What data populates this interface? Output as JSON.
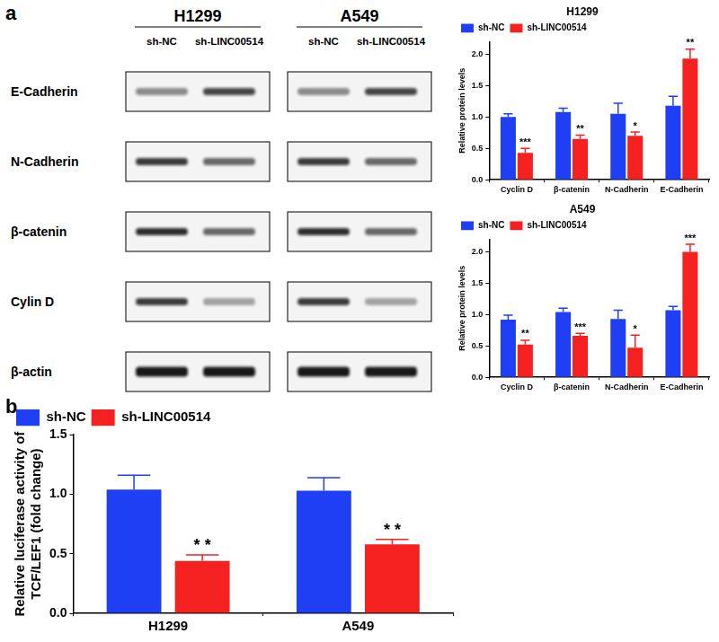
{
  "panel_labels": [
    "a",
    "b"
  ],
  "blot": {
    "cell_lines": [
      "H1299",
      "A549"
    ],
    "lanes": [
      "sh-NC",
      "sh-LINC00514"
    ],
    "proteins": [
      "E-Cadherin",
      "N-Cadherin",
      "β-catenin",
      "Cylin D",
      "β-actin"
    ]
  },
  "chart_data": [
    {
      "type": "bar",
      "title": "H1299",
      "y_label": "Relative protein levels",
      "categories": [
        "Cyclin D",
        "β-catenin",
        "N-Cadherin",
        "E-Cadherin"
      ],
      "series": [
        {
          "name": "sh-NC",
          "color": "#1f3ff5",
          "values": [
            1.0,
            1.08,
            1.05,
            1.18
          ],
          "errors": [
            0.05,
            0.06,
            0.17,
            0.15
          ]
        },
        {
          "name": "sh-LINC00514",
          "color": "#f52020",
          "values": [
            0.43,
            0.65,
            0.7,
            1.93
          ],
          "errors": [
            0.07,
            0.06,
            0.06,
            0.15
          ],
          "significance": [
            "***",
            "**",
            "*",
            "**"
          ]
        }
      ],
      "ylim": [
        0,
        2.2
      ],
      "yticks": [
        {
          "value": 0,
          "label": "0.0"
        },
        0.5,
        {
          "value": 1,
          "label": "1.0"
        },
        1.5,
        {
          "value": 2,
          "label": "2.0"
        }
      ],
      "grid": false,
      "legend": "top-left"
    },
    {
      "type": "bar",
      "title": "A549",
      "y_label": "Relative protein levels",
      "categories": [
        "Cyclin D",
        "β-catenin",
        "N-Cadherin",
        "E-Cadherin"
      ],
      "series": [
        {
          "name": "sh-NC",
          "color": "#1f3ff5",
          "values": [
            0.92,
            1.04,
            0.93,
            1.07
          ],
          "errors": [
            0.07,
            0.06,
            0.14,
            0.06
          ]
        },
        {
          "name": "sh-LINC00514",
          "color": "#f52020",
          "values": [
            0.52,
            0.66,
            0.47,
            2.0
          ],
          "errors": [
            0.07,
            0.04,
            0.2,
            0.12
          ],
          "significance": [
            "**",
            "***",
            "*",
            "***"
          ]
        }
      ],
      "ylim": [
        0,
        2.2
      ],
      "yticks": [
        {
          "value": 0,
          "label": "0.0"
        },
        0.5,
        {
          "value": 1,
          "label": "1.0"
        },
        1.5,
        {
          "value": 2,
          "label": "2.0"
        }
      ],
      "grid": false,
      "legend": "top-left"
    },
    {
      "type": "bar",
      "y_label": [
        "Relative luciferase activity of",
        "TCF/LEF1 (fold change)"
      ],
      "categories": [
        "H1299",
        "A549"
      ],
      "series": [
        {
          "name": "sh-NC",
          "color": "#1f3ff5",
          "values": [
            1.04,
            1.03
          ],
          "errors": [
            0.12,
            0.11
          ]
        },
        {
          "name": "sh-LINC00514",
          "color": "#f52020",
          "values": [
            0.44,
            0.58
          ],
          "errors": [
            0.05,
            0.04
          ],
          "significance": [
            "* *",
            "* *"
          ]
        }
      ],
      "ylim": [
        0,
        1.5
      ],
      "yticks": [
        {
          "value": 0,
          "label": "0.0"
        },
        0.5,
        {
          "value": 1,
          "label": "1.0"
        },
        1.5
      ],
      "grid": false,
      "legend": "top-left"
    }
  ]
}
